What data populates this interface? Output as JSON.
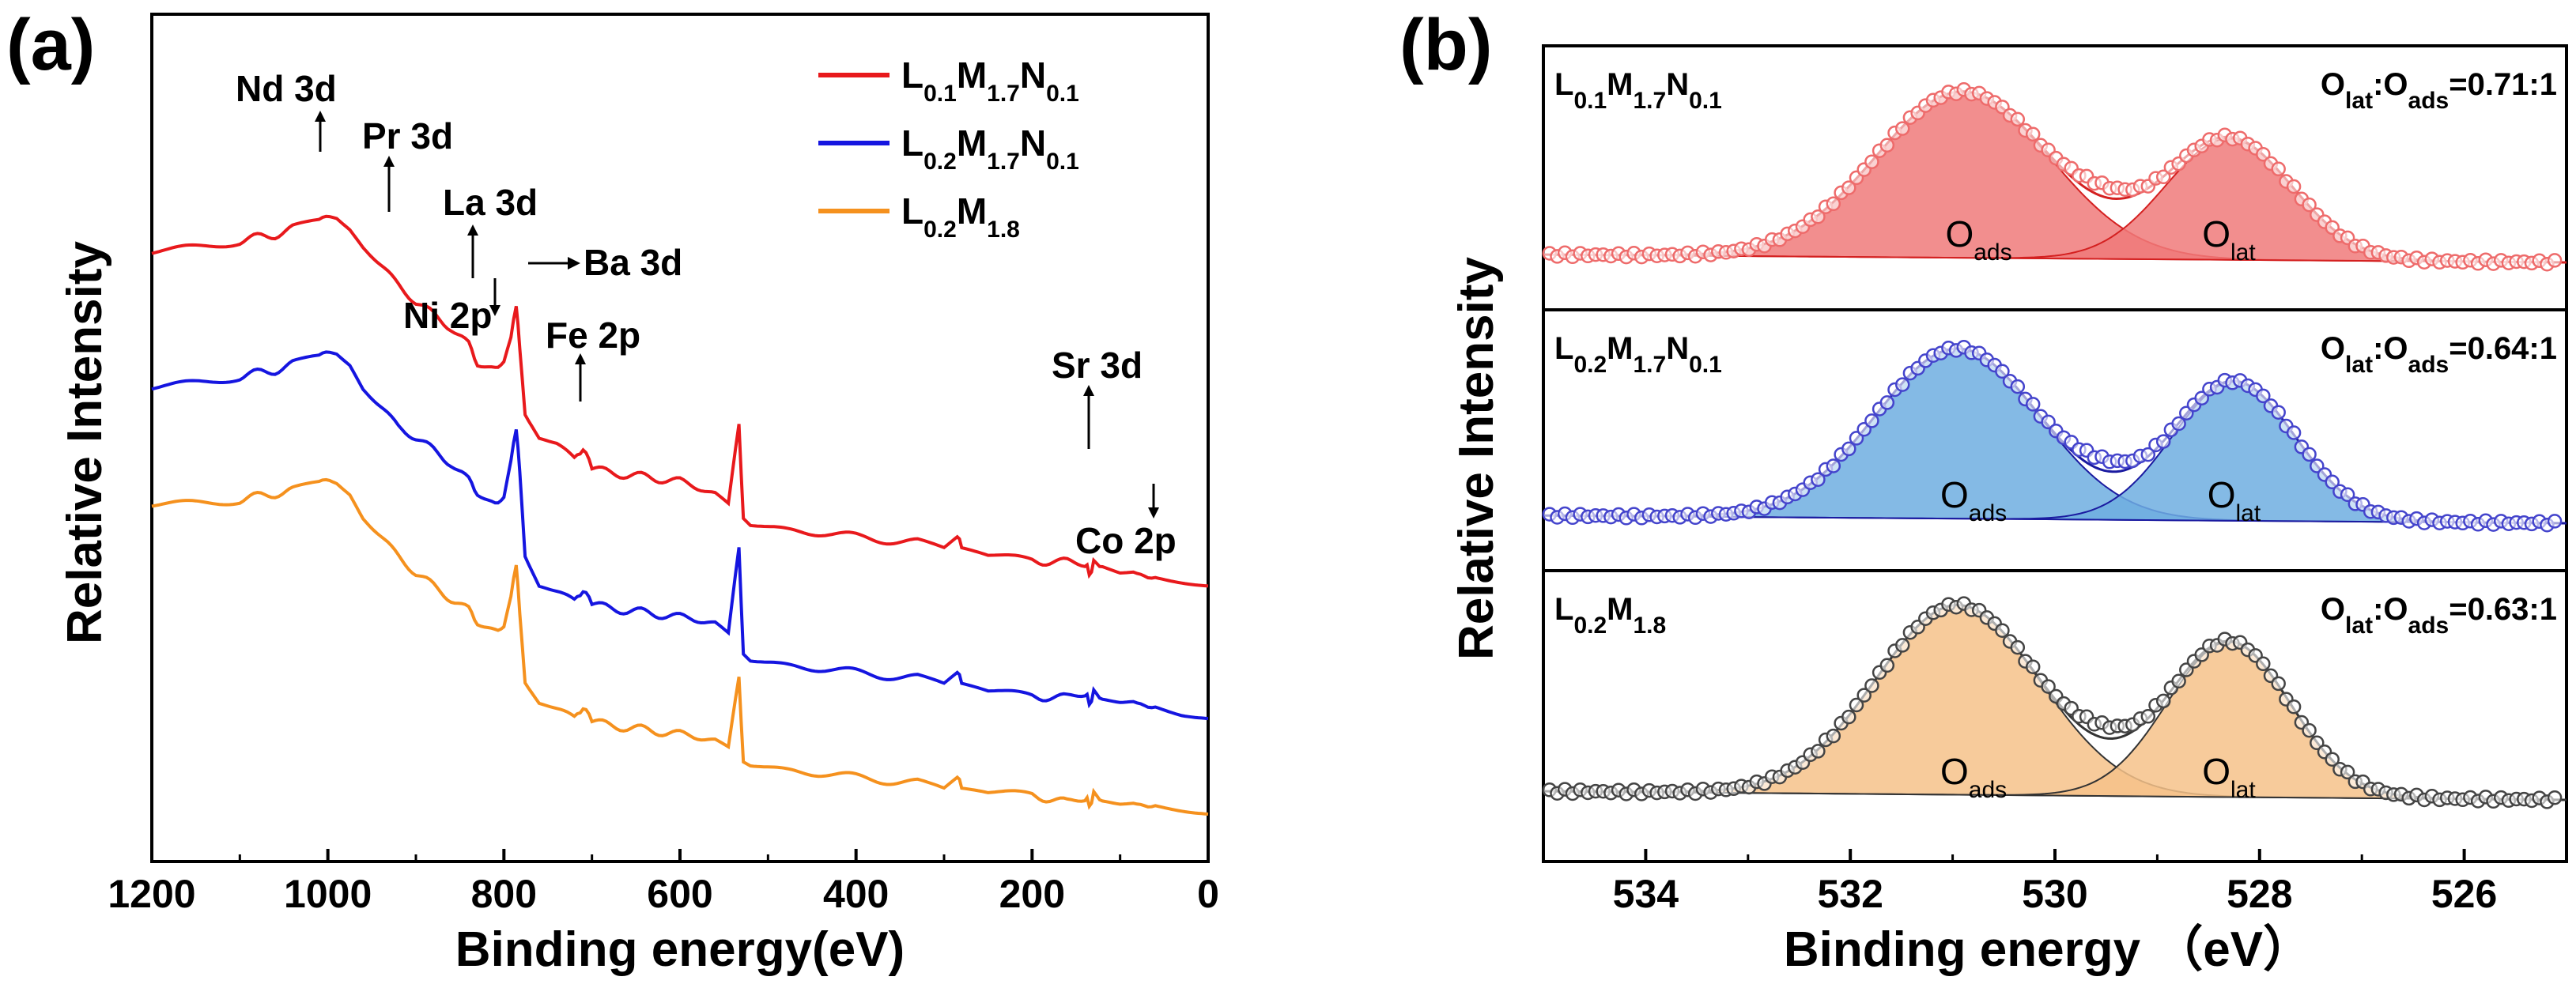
{
  "panels": [
    {
      "tag": "(a)",
      "type": "line",
      "title": "",
      "xlabel": "Binding energy(eV)",
      "ylabel": "Relative Intensity",
      "xlim": [
        1200,
        0
      ],
      "x_reversed": true,
      "xticks": [
        1200,
        1000,
        800,
        600,
        400,
        200,
        0
      ],
      "yticks_shown": false,
      "legend_position": "top-right",
      "legend": [
        {
          "base": "L",
          "s1": "0.1",
          "m": "M",
          "s2": "1.7",
          "n": "N",
          "s3": "0.1",
          "color": "#e8191c"
        },
        {
          "base": "L",
          "s1": "0.2",
          "m": "M",
          "s2": "1.7",
          "n": "N",
          "s3": "0.1",
          "color": "#1515e0"
        },
        {
          "base": "L",
          "s1": "0.2",
          "m": "M",
          "s2": "1.8",
          "n": "",
          "s3": "",
          "color": "#f5911e"
        }
      ],
      "series": [
        {
          "name": "L0.1M1.7N0.1",
          "color": "#e8191c",
          "x": [
            1200,
            1150,
            1100,
            1060,
            1040,
            1010,
            990,
            975,
            960,
            940,
            920,
            900,
            880,
            860,
            840,
            830,
            810,
            800,
            792,
            786,
            782,
            776,
            760,
            740,
            720,
            710,
            700,
            660,
            600,
            560,
            545,
            533,
            528,
            520,
            470,
            400,
            330,
            300,
            285,
            280,
            250,
            200,
            160,
            140,
            135,
            130,
            120,
            100,
            85,
            60,
            30,
            0
          ],
          "y": [
            0.76,
            0.77,
            0.78,
            0.79,
            0.8,
            0.81,
            0.82,
            0.8,
            0.77,
            0.74,
            0.71,
            0.68,
            0.66,
            0.64,
            0.61,
            0.58,
            0.57,
            0.58,
            0.62,
            0.68,
            0.61,
            0.5,
            0.46,
            0.45,
            0.43,
            0.44,
            0.41,
            0.4,
            0.39,
            0.37,
            0.35,
            0.48,
            0.33,
            0.32,
            0.31,
            0.3,
            0.29,
            0.28,
            0.3,
            0.285,
            0.27,
            0.26,
            0.26,
            0.255,
            0.24,
            0.255,
            0.25,
            0.24,
            0.245,
            0.23,
            0.225,
            0.22
          ]
        },
        {
          "name": "L0.2M1.7N0.1",
          "color": "#1515e0",
          "x": [
            1200,
            1150,
            1100,
            1060,
            1040,
            1010,
            990,
            975,
            960,
            940,
            920,
            900,
            880,
            860,
            840,
            830,
            810,
            800,
            792,
            786,
            782,
            776,
            760,
            740,
            720,
            710,
            700,
            660,
            600,
            560,
            545,
            533,
            528,
            520,
            470,
            400,
            330,
            300,
            285,
            280,
            250,
            200,
            160,
            140,
            135,
            130,
            120,
            100,
            85,
            60,
            30,
            0
          ],
          "y": [
            0.54,
            0.55,
            0.56,
            0.57,
            0.58,
            0.59,
            0.6,
            0.58,
            0.54,
            0.51,
            0.48,
            0.46,
            0.44,
            0.42,
            0.39,
            0.37,
            0.35,
            0.36,
            0.42,
            0.48,
            0.41,
            0.27,
            0.22,
            0.21,
            0.2,
            0.21,
            0.19,
            0.18,
            0.17,
            0.16,
            0.14,
            0.28,
            0.11,
            0.1,
            0.09,
            0.08,
            0.07,
            0.06,
            0.08,
            0.065,
            0.05,
            0.04,
            0.04,
            0.045,
            0.03,
            0.045,
            0.035,
            0.03,
            0.035,
            0.02,
            0.01,
            0.005
          ]
        },
        {
          "name": "L0.2M1.8",
          "color": "#f5911e",
          "x": [
            1200,
            1150,
            1100,
            1060,
            1040,
            1010,
            990,
            975,
            960,
            940,
            920,
            900,
            880,
            860,
            840,
            830,
            810,
            800,
            792,
            786,
            782,
            776,
            760,
            740,
            720,
            710,
            700,
            660,
            600,
            560,
            545,
            533,
            528,
            520,
            470,
            400,
            330,
            300,
            285,
            280,
            250,
            200,
            160,
            140,
            135,
            130,
            120,
            100,
            85,
            60,
            30,
            0
          ],
          "y": [
            0.35,
            0.355,
            0.36,
            0.37,
            0.375,
            0.385,
            0.39,
            0.37,
            0.33,
            0.3,
            0.27,
            0.24,
            0.22,
            0.2,
            0.18,
            0.16,
            0.145,
            0.15,
            0.2,
            0.26,
            0.18,
            0.065,
            0.03,
            0.02,
            0.01,
            0.02,
            0.0,
            -0.01,
            -0.02,
            -0.03,
            -0.045,
            0.07,
            -0.065,
            -0.07,
            -0.08,
            -0.09,
            -0.1,
            -0.11,
            -0.09,
            -0.105,
            -0.115,
            -0.12,
            -0.13,
            -0.125,
            -0.135,
            -0.12,
            -0.13,
            -0.135,
            -0.13,
            -0.14,
            -0.145,
            -0.15
          ]
        }
      ],
      "annotations": [
        {
          "text": "Nd 3d",
          "x": 1000,
          "arrow": "up"
        },
        {
          "text": "Pr 3d",
          "x": 930,
          "arrow": "up"
        },
        {
          "text": "La 3d",
          "x": 835,
          "arrow": "up"
        },
        {
          "text": "Ba 3d",
          "x": 780,
          "arrow": "right"
        },
        {
          "text": "Ni 2p",
          "x": 860,
          "arrow": "down"
        },
        {
          "text": "Fe 2p",
          "x": 710,
          "arrow": "up"
        },
        {
          "text": "Sr 3d",
          "x": 133,
          "arrow": "up"
        },
        {
          "text": "Co 2p",
          "x": 60,
          "arrow": "down"
        }
      ]
    },
    {
      "tag": "(b)",
      "type": "area",
      "title": "",
      "xlabel": "Binding energy （eV）",
      "ylabel": "Relative Intensity",
      "xlim": [
        535,
        525
      ],
      "x_reversed": true,
      "xticks": [
        534,
        532,
        530,
        528,
        526
      ],
      "yticks_shown": false,
      "subplots": [
        {
          "sample": {
            "base": "L",
            "s1": "0.1",
            "m": "M",
            "s2": "1.7",
            "n": "N",
            "s3": "0.1"
          },
          "ratio": {
            "a": "O",
            "as": "lat",
            "b": "O",
            "bs": "ads",
            "value": "=0.71:1"
          },
          "peaks": [
            {
              "name": "O",
              "sub": "ads",
              "center": 530.9,
              "width": 0.85,
              "height": 0.85,
              "fill": "#f07a7a",
              "stroke": "#d42020"
            },
            {
              "name": "O",
              "sub": "lat",
              "center": 528.3,
              "width": 0.62,
              "height": 0.62,
              "fill": "#f07a7a",
              "stroke": "#d42020"
            }
          ],
          "marker_color": "#ee6b6b"
        },
        {
          "sample": {
            "base": "L",
            "s1": "0.2",
            "m": "M",
            "s2": "1.7",
            "n": "N",
            "s3": "0.1"
          },
          "ratio": {
            "a": "O",
            "as": "lat",
            "b": "O",
            "bs": "ads",
            "value": "=0.64:1"
          },
          "peaks": [
            {
              "name": "O",
              "sub": "ads",
              "center": 530.95,
              "width": 0.8,
              "height": 0.88,
              "fill": "#6faee0",
              "stroke": "#1a1aa0"
            },
            {
              "name": "O",
              "sub": "lat",
              "center": 528.25,
              "width": 0.6,
              "height": 0.72,
              "fill": "#6faee0",
              "stroke": "#1a1aa0"
            }
          ],
          "marker_color": "#4444cc"
        },
        {
          "sample": {
            "base": "L",
            "s1": "0.2",
            "m": "M",
            "s2": "1.8",
            "n": "",
            "s3": ""
          },
          "ratio": {
            "a": "O",
            "as": "lat",
            "b": "O",
            "bs": "ads",
            "value": "=0.63:1"
          },
          "peaks": [
            {
              "name": "O",
              "sub": "ads",
              "center": 530.95,
              "width": 0.8,
              "height": 0.88,
              "fill": "#f6c28a",
              "stroke": "#333333"
            },
            {
              "name": "O",
              "sub": "lat",
              "center": 528.3,
              "width": 0.6,
              "height": 0.72,
              "fill": "#f6c28a",
              "stroke": "#333333"
            }
          ],
          "marker_color": "#444444"
        }
      ]
    }
  ]
}
